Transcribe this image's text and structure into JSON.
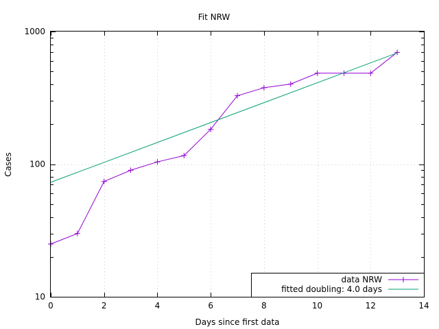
{
  "chart_data": {
    "type": "line",
    "title": "Fit NRW",
    "xlabel": "Days since first data",
    "ylabel": "Cases",
    "xlim": [
      0,
      14
    ],
    "ylim": [
      10,
      1000
    ],
    "yscale": "log",
    "grid": true,
    "legend_position": "bottom-right",
    "xticks": [
      0,
      2,
      4,
      6,
      8,
      10,
      12,
      14
    ],
    "xtick_labels": [
      "0",
      "2",
      "4",
      "6",
      "8",
      "10",
      "12",
      "14"
    ],
    "yticks": [
      10,
      100,
      1000
    ],
    "ytick_labels": [
      "10",
      "100",
      "1000"
    ],
    "series": [
      {
        "name": "data NRW",
        "style": "linespoints",
        "marker": "plus",
        "color": "#9400d3",
        "x": [
          0,
          1,
          2,
          3,
          4,
          5,
          6,
          7,
          8,
          9,
          10,
          11,
          12,
          13
        ],
        "y": [
          25,
          30,
          74,
          90,
          104,
          116,
          183,
          328,
          377,
          402,
          485,
          485,
          485,
          697
        ]
      },
      {
        "name": "fitted doubling: 4.0 days",
        "style": "line",
        "color": "#009e73",
        "x": [
          0,
          13
        ],
        "y": [
          73,
          690
        ]
      }
    ]
  }
}
